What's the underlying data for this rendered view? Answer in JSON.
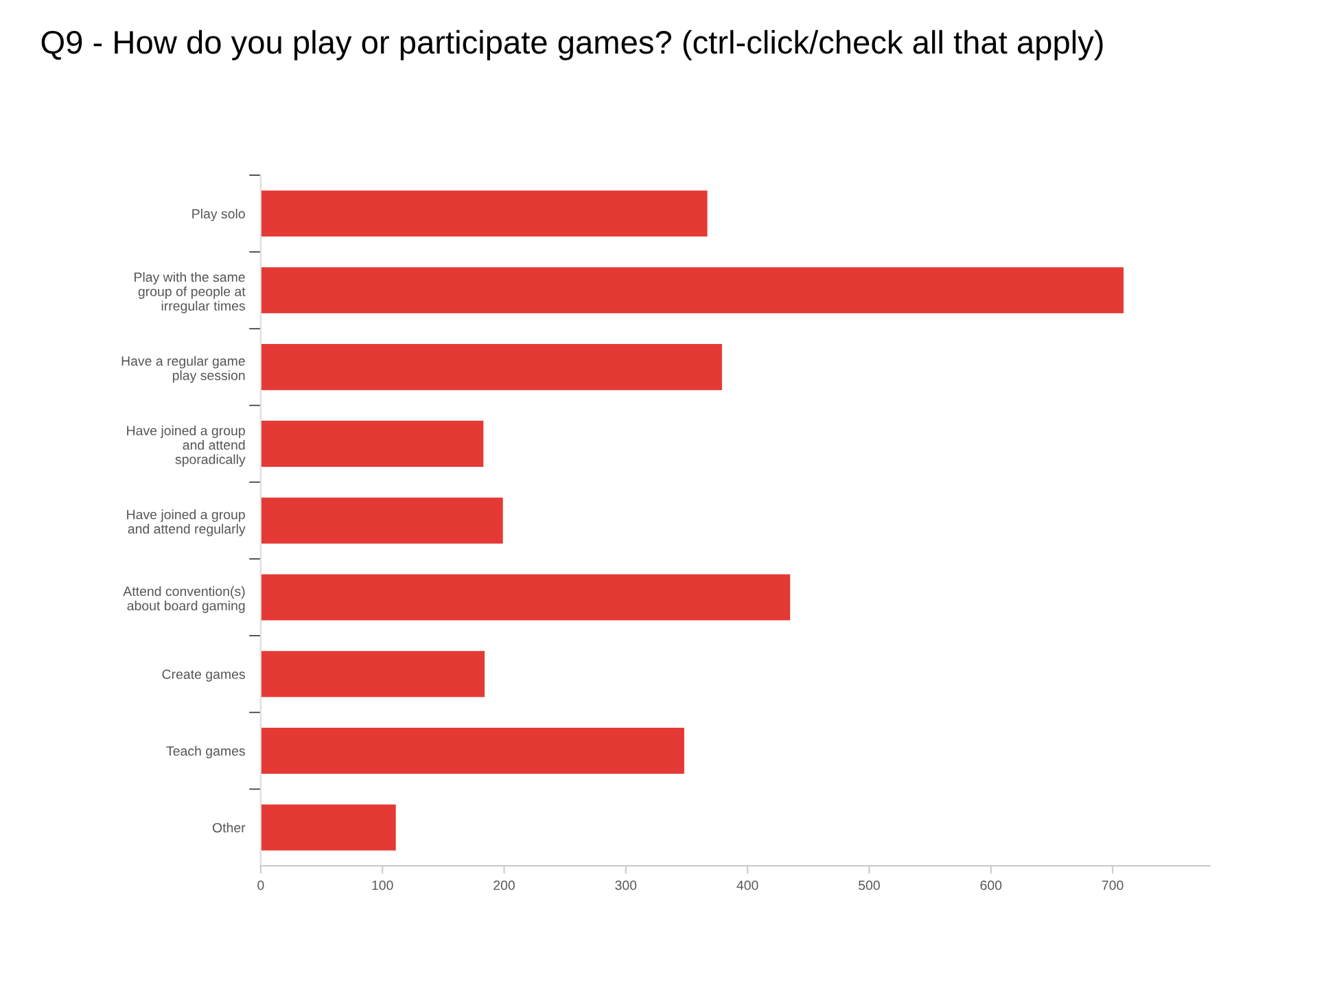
{
  "chart_data": {
    "type": "bar",
    "orientation": "horizontal",
    "title": "Q9 - How do you play or participate games? (ctrl-click/check all that apply)",
    "categories": [
      "Play solo",
      "Play with the same\ngroup of people at\nirregular times",
      "Have a regular game\nplay session",
      "Have joined a group\nand attend\nsporadically",
      "Have joined a group\nand attend regularly",
      "Attend convention(s)\nabout board gaming",
      "Create games",
      "Teach games",
      "Other"
    ],
    "values": [
      367,
      709,
      379,
      183,
      199,
      435,
      184,
      348,
      111
    ],
    "color": "#e53935",
    "xlim": [
      0,
      780
    ],
    "xticks": [
      0,
      100,
      200,
      300,
      400,
      500,
      600,
      700
    ],
    "grid": false
  }
}
